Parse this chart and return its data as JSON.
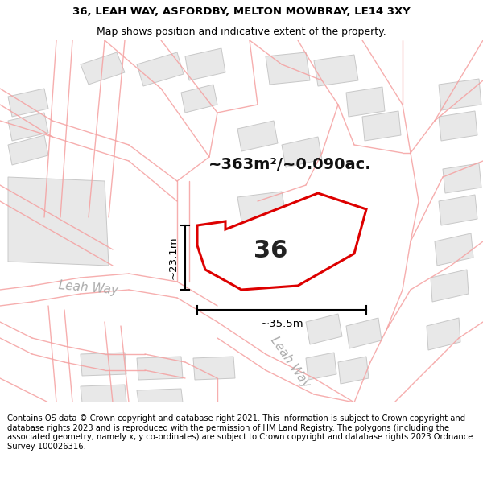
{
  "title_line1": "36, LEAH WAY, ASFORDBY, MELTON MOWBRAY, LE14 3XY",
  "title_line2": "Map shows position and indicative extent of the property.",
  "footer_text": "Contains OS data © Crown copyright and database right 2021. This information is subject to Crown copyright and database rights 2023 and is reproduced with the permission of HM Land Registry. The polygons (including the associated geometry, namely x, y co-ordinates) are subject to Crown copyright and database rights 2023 Ordnance Survey 100026316.",
  "area_label": "~363m²/~0.090ac.",
  "dim_width": "~35.5m",
  "dim_height": "~23.1m",
  "property_number": "36",
  "street_label_left": "Leah Way",
  "street_label_right": "Leah Way",
  "bg_color": "#ffffff",
  "road_color": "#f5a0a0",
  "road_lw": 1.0,
  "property_fill": "#ffffff",
  "property_edge": "#dd0000",
  "property_edge_lw": 2.2,
  "building_fill": "#e8e8e8",
  "building_edge": "#c8c8c8",
  "title_fontsize": 9.5,
  "subtitle_fontsize": 9,
  "footer_fontsize": 7.2,
  "area_fontsize": 14,
  "number_fontsize": 22,
  "dim_fontsize": 9.5,
  "street_fontsize": 11,
  "title_color": "#000000",
  "footer_color": "#000000",
  "dim_color": "#000000",
  "street_color": "#aaaaaa"
}
